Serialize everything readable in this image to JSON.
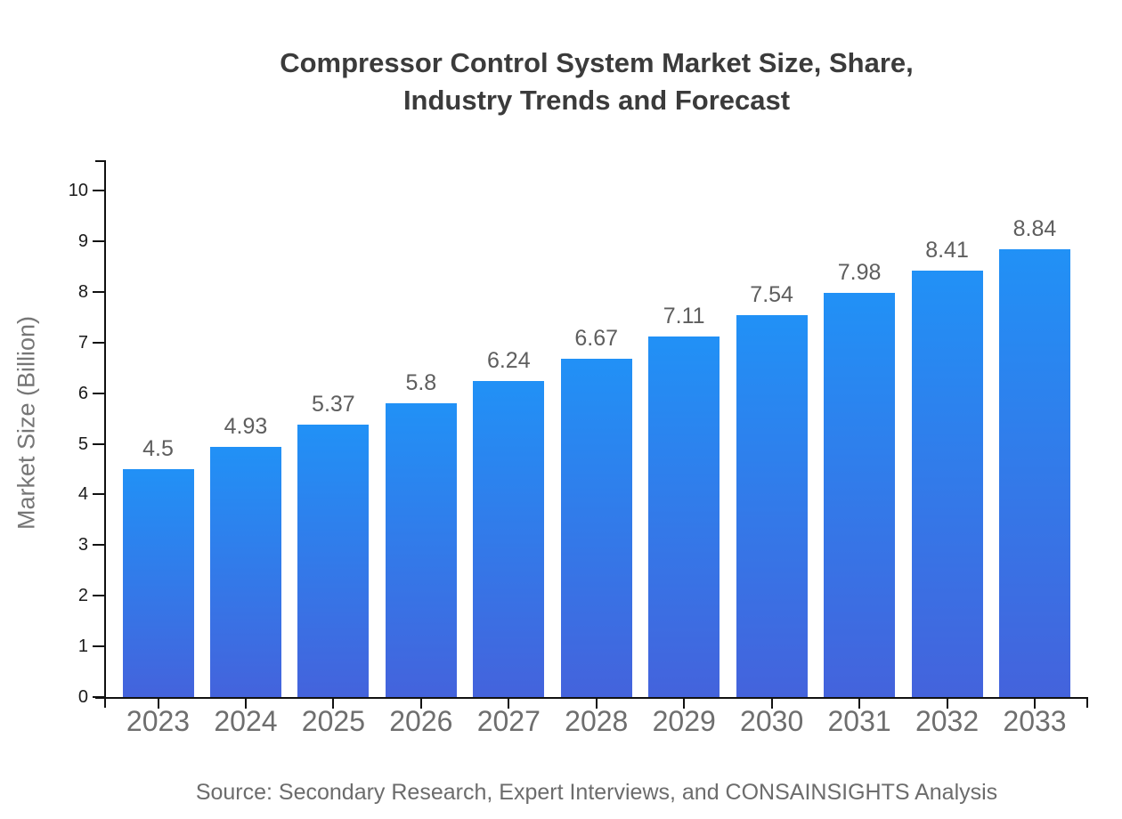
{
  "title": {
    "line1": "Compressor Control System Market Size, Share,",
    "line2": "Industry Trends and Forecast"
  },
  "source_note": "Source: Secondary Research, Expert Interviews, and CONSAINSIGHTS Analysis",
  "colors": {
    "bar_gradient_top": "#2191F6",
    "bar_gradient_bottom": "#4463DC",
    "axis": "#111111",
    "title_text": "#3b3b3b",
    "tick_label_text": "#1a1a1a",
    "category_label_text": "#6e6e6e",
    "value_label_text": "#5e5e5e",
    "source_text": "#6c6c6c"
  },
  "chart_data": {
    "type": "bar",
    "title": "Compressor Control System Market Size, Share, Industry Trends and Forecast",
    "categories": [
      "2023",
      "2024",
      "2025",
      "2026",
      "2027",
      "2028",
      "2029",
      "2030",
      "2031",
      "2032",
      "2033"
    ],
    "values": [
      4.5,
      4.93,
      5.37,
      5.8,
      6.24,
      6.67,
      7.11,
      7.54,
      7.98,
      8.41,
      8.84
    ],
    "value_labels": [
      "4.5",
      "4.93",
      "5.37",
      "5.8",
      "6.24",
      "6.67",
      "7.11",
      "7.54",
      "7.98",
      "8.41",
      "8.84"
    ],
    "xlabel": "",
    "ylabel": "Market Size (Billion)",
    "ylim": [
      0,
      10
    ],
    "yticks": [
      0,
      1,
      2,
      3,
      4,
      5,
      6,
      7,
      8,
      9,
      10
    ],
    "grid": false,
    "legend": false
  }
}
